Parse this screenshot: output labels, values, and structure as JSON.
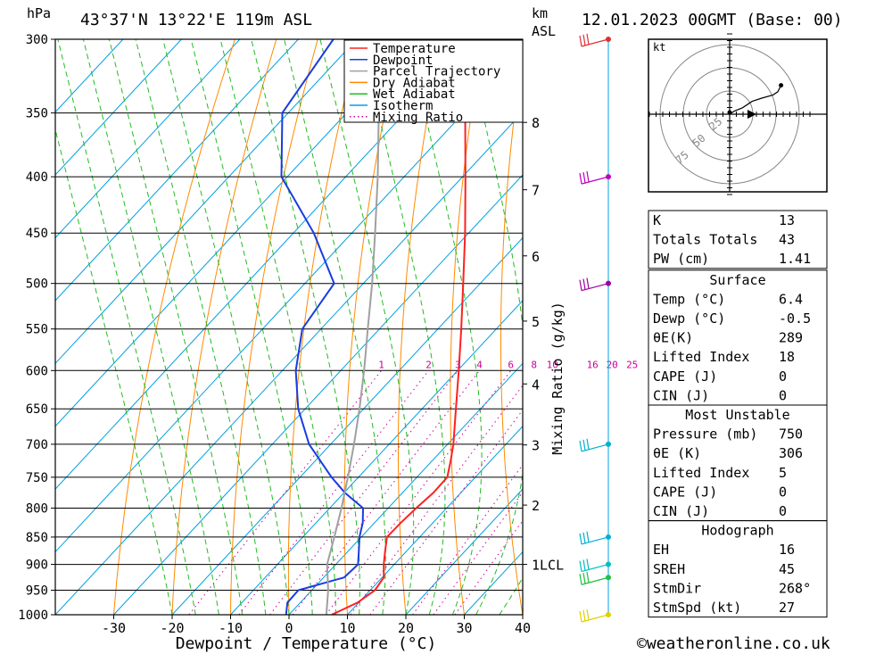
{
  "header": {
    "pressure_unit": "hPa",
    "location": "43°37'N  13°22'E  119m  ASL",
    "km_label_1": "km",
    "km_label_2": "ASL",
    "datetime": "12.01.2023  00GMT  (Base: 00)"
  },
  "legend": [
    {
      "label": "Temperature",
      "color": "#ff2020",
      "style": "solid"
    },
    {
      "label": "Dewpoint",
      "color": "#1a3ce0",
      "style": "solid"
    },
    {
      "label": "Parcel Trajectory",
      "color": "#a0a0a0",
      "style": "solid"
    },
    {
      "label": "Dry Adiabat",
      "color": "#ff8a00",
      "style": "solid"
    },
    {
      "label": "Wet Adiabat",
      "color": "#22bb22",
      "style": "solid"
    },
    {
      "label": "Isotherm",
      "color": "#00a0e0",
      "style": "solid"
    },
    {
      "label": "Mixing Ratio",
      "color": "#cc0099",
      "style": "dotted"
    }
  ],
  "chart_data": {
    "type": "line",
    "xlabel": "Dewpoint / Temperature (°C)",
    "ylabel": "hPa",
    "xlim": [
      -40,
      40
    ],
    "pressure_range": [
      300,
      1000
    ],
    "x_ticks": [
      -30,
      -20,
      -10,
      0,
      10,
      20,
      30,
      40
    ],
    "pressure_ticks": [
      300,
      350,
      400,
      450,
      500,
      550,
      600,
      650,
      700,
      750,
      800,
      850,
      900,
      950,
      1000
    ],
    "km_ticks": [
      {
        "label": "8",
        "p": 357
      },
      {
        "label": "7",
        "p": 411
      },
      {
        "label": "6",
        "p": 472
      },
      {
        "label": "5",
        "p": 541
      },
      {
        "label": "4",
        "p": 617
      },
      {
        "label": "3",
        "p": 701
      },
      {
        "label": "2",
        "p": 795
      },
      {
        "label": "1LCL",
        "p": 900
      }
    ],
    "mixing_ratio_axis_label": "Mixing Ratio (g/kg)",
    "mixing_ratio_labels": [
      "1",
      "2",
      "3",
      "4",
      "6",
      "8",
      "10",
      "16",
      "20",
      "25"
    ],
    "series": [
      {
        "name": "Temperature",
        "color": "#ff2020",
        "points": [
          [
            1000,
            7.3
          ],
          [
            975,
            9.8
          ],
          [
            950,
            10.8
          ],
          [
            925,
            10.3
          ],
          [
            900,
            8.2
          ],
          [
            875,
            6.3
          ],
          [
            850,
            4.4
          ],
          [
            825,
            4.5
          ],
          [
            800,
            4.8
          ],
          [
            775,
            5.3
          ],
          [
            750,
            5.2
          ],
          [
            725,
            3.2
          ],
          [
            700,
            1.0
          ],
          [
            650,
            -4.2
          ],
          [
            600,
            -9.8
          ],
          [
            550,
            -16.0
          ],
          [
            500,
            -22.9
          ],
          [
            450,
            -30.6
          ],
          [
            400,
            -39.5
          ],
          [
            350,
            -49.7
          ],
          [
            300,
            -61.4
          ]
        ]
      },
      {
        "name": "Dewpoint",
        "color": "#1a3ce0",
        "points": [
          [
            1000,
            -0.5
          ],
          [
            975,
            -2.2
          ],
          [
            950,
            -2.3
          ],
          [
            925,
            3.5
          ],
          [
            900,
            3.8
          ],
          [
            875,
            1.8
          ],
          [
            850,
            -0.3
          ],
          [
            825,
            -2.0
          ],
          [
            800,
            -4.3
          ],
          [
            775,
            -9.8
          ],
          [
            750,
            -14.6
          ],
          [
            700,
            -23.7
          ],
          [
            650,
            -31.2
          ],
          [
            600,
            -37.7
          ],
          [
            550,
            -43.2
          ],
          [
            500,
            -45.0
          ],
          [
            450,
            -56.5
          ],
          [
            400,
            -71.0
          ],
          [
            350,
            -81.0
          ],
          [
            300,
            -84.0
          ]
        ]
      },
      {
        "name": "Parcel Trajectory",
        "color": "#a0a0a0",
        "points": [
          [
            1000,
            6.4
          ],
          [
            950,
            2.8
          ],
          [
            900,
            -1.5
          ],
          [
            850,
            -4.6
          ],
          [
            800,
            -8.0
          ],
          [
            750,
            -11.8
          ],
          [
            700,
            -16.0
          ],
          [
            650,
            -20.7
          ],
          [
            600,
            -26.0
          ],
          [
            550,
            -32.0
          ],
          [
            500,
            -38.5
          ],
          [
            450,
            -46.0
          ],
          [
            400,
            -54.5
          ],
          [
            350,
            -64.5
          ],
          [
            300,
            -76.0
          ]
        ]
      }
    ],
    "wind_barbs": [
      {
        "p": 300,
        "color": "#e03030"
      },
      {
        "p": 400,
        "color": "#c000c0"
      },
      {
        "p": 500,
        "color": "#a000a0"
      },
      {
        "p": 700,
        "color": "#00b0d0"
      },
      {
        "p": 850,
        "color": "#00b0d0"
      },
      {
        "p": 900,
        "color": "#00c0c0"
      },
      {
        "p": 925,
        "color": "#20c040"
      },
      {
        "p": 1000,
        "color": "#e0d000"
      }
    ],
    "hodograph": {
      "unit": "kt",
      "ring_labels": [
        "25",
        "50",
        "75"
      ],
      "trace": [
        [
          0,
          0
        ],
        [
          3,
          -2
        ],
        [
          8,
          -4
        ],
        [
          14,
          -8
        ],
        [
          20,
          -10
        ],
        [
          27,
          -12
        ],
        [
          30,
          -14
        ],
        [
          32,
          -18
        ]
      ]
    }
  },
  "indices": {
    "k_label": "K",
    "k_value": "13",
    "tt_label": "Totals Totals",
    "tt_value": "43",
    "pw_label": "PW (cm)",
    "pw_value": "1.41",
    "surface": {
      "title": "Surface",
      "rows": [
        {
          "label": "Temp (°C)",
          "value": "6.4"
        },
        {
          "label": "Dewp (°C)",
          "value": "-0.5"
        },
        {
          "label": "θE(K)",
          "value": "289"
        },
        {
          "label": "Lifted Index",
          "value": "18"
        },
        {
          "label": "CAPE (J)",
          "value": "0"
        },
        {
          "label": "CIN (J)",
          "value": "0"
        }
      ]
    },
    "most_unstable": {
      "title": "Most Unstable",
      "rows": [
        {
          "label": "Pressure (mb)",
          "value": "750"
        },
        {
          "label": "θE (K)",
          "value": "306"
        },
        {
          "label": "Lifted Index",
          "value": "5"
        },
        {
          "label": "CAPE (J)",
          "value": "0"
        },
        {
          "label": "CIN (J)",
          "value": "0"
        }
      ]
    },
    "hodograph_table": {
      "title": "Hodograph",
      "rows": [
        {
          "label": "EH",
          "value": "16"
        },
        {
          "label": "SREH",
          "value": "45"
        },
        {
          "label": "StmDir",
          "value": "268°"
        },
        {
          "label": "StmSpd (kt)",
          "value": "27"
        }
      ]
    }
  },
  "footer": {
    "copyright": "©weatheronline.co.uk"
  }
}
